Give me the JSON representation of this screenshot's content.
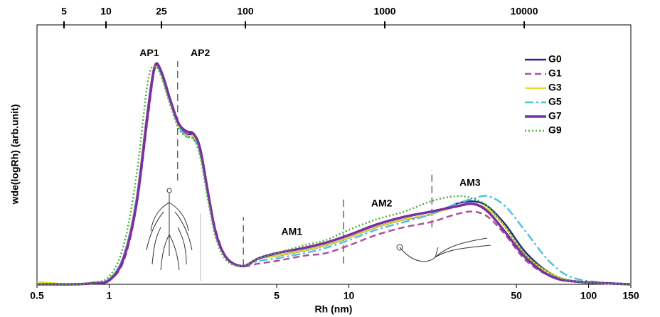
{
  "chart_data": {
    "type": "line",
    "xlabel": "Rh (nm)",
    "ylabel": "wde(logRh) (arb.unit)",
    "xscale": "log",
    "xlim": [
      0.5,
      150
    ],
    "xticks": [
      0.5,
      1,
      5,
      10,
      50,
      100,
      150
    ],
    "x2lim": [
      3.2,
      58200
    ],
    "x2ticks": [
      5,
      10,
      25,
      100,
      1000,
      10000
    ],
    "ylim": [
      0,
      1
    ],
    "legend": "upper right",
    "x": [
      0.5,
      0.7,
      0.85,
      1.0,
      1.15,
      1.3,
      1.45,
      1.55,
      1.65,
      1.8,
      1.95,
      2.1,
      2.25,
      2.4,
      2.6,
      2.8,
      3.1,
      3.6,
      4.2,
      5,
      6.5,
      8,
      10,
      13,
      17,
      22,
      28,
      33,
      38,
      45,
      55,
      70,
      90,
      150
    ],
    "series": [
      {
        "name": "G0",
        "color": "#2e2a8c",
        "dash": "solid",
        "width": 2.5,
        "values": [
          0,
          0,
          0.005,
          0.02,
          0.11,
          0.33,
          0.68,
          0.84,
          0.81,
          0.7,
          0.62,
          0.58,
          0.575,
          0.51,
          0.33,
          0.19,
          0.1,
          0.07,
          0.1,
          0.11,
          0.13,
          0.15,
          0.18,
          0.22,
          0.25,
          0.27,
          0.31,
          0.32,
          0.3,
          0.23,
          0.12,
          0.04,
          0.01,
          0
        ]
      },
      {
        "name": "G1",
        "color": "#b04fa0",
        "dash": "dashed",
        "width": 2.5,
        "values": [
          0,
          0,
          0.004,
          0.015,
          0.09,
          0.3,
          0.64,
          0.83,
          0.82,
          0.71,
          0.62,
          0.58,
          0.57,
          0.51,
          0.34,
          0.2,
          0.1,
          0.07,
          0.08,
          0.09,
          0.11,
          0.12,
          0.15,
          0.19,
          0.22,
          0.24,
          0.27,
          0.28,
          0.26,
          0.19,
          0.09,
          0.03,
          0.01,
          0
        ]
      },
      {
        "name": "G3",
        "color": "#e8e020",
        "dash": "solid",
        "width": 2,
        "values": [
          0.01,
          0,
          0.005,
          0.02,
          0.11,
          0.33,
          0.68,
          0.83,
          0.81,
          0.7,
          0.61,
          0.57,
          0.57,
          0.51,
          0.33,
          0.19,
          0.1,
          0.07,
          0.1,
          0.11,
          0.13,
          0.15,
          0.18,
          0.22,
          0.25,
          0.27,
          0.3,
          0.31,
          0.29,
          0.22,
          0.11,
          0.04,
          0.01,
          0
        ]
      },
      {
        "name": "G5",
        "color": "#4fc3dc",
        "dash": "dashdot",
        "width": 2.5,
        "values": [
          0,
          0,
          0.005,
          0.02,
          0.11,
          0.33,
          0.67,
          0.83,
          0.81,
          0.7,
          0.61,
          0.57,
          0.56,
          0.5,
          0.33,
          0.19,
          0.1,
          0.07,
          0.09,
          0.1,
          0.12,
          0.14,
          0.17,
          0.21,
          0.24,
          0.27,
          0.31,
          0.33,
          0.34,
          0.3,
          0.2,
          0.08,
          0.02,
          0
        ]
      },
      {
        "name": "G7",
        "color": "#7b2fa0",
        "dash": "solid",
        "width": 3.5,
        "values": [
          0,
          0,
          0.004,
          0.015,
          0.1,
          0.31,
          0.66,
          0.84,
          0.82,
          0.71,
          0.62,
          0.59,
          0.58,
          0.52,
          0.34,
          0.19,
          0.1,
          0.07,
          0.1,
          0.12,
          0.14,
          0.16,
          0.19,
          0.23,
          0.26,
          0.28,
          0.3,
          0.31,
          0.28,
          0.2,
          0.1,
          0.03,
          0.01,
          0
        ]
      },
      {
        "name": "G9",
        "color": "#4caf3a",
        "dash": "dotted",
        "width": 2.5,
        "values": [
          0,
          0,
          0.008,
          0.03,
          0.15,
          0.42,
          0.78,
          0.84,
          0.8,
          0.69,
          0.6,
          0.57,
          0.56,
          0.49,
          0.31,
          0.17,
          0.09,
          0.07,
          0.1,
          0.12,
          0.15,
          0.17,
          0.21,
          0.25,
          0.28,
          0.32,
          0.34,
          0.33,
          0.3,
          0.22,
          0.11,
          0.04,
          0.01,
          0
        ]
      }
    ],
    "annotations": [
      {
        "text": "AP1",
        "x": 1.47,
        "y": 0.89
      },
      {
        "text": "AP2",
        "x": 2.4,
        "y": 0.89
      },
      {
        "text": "AM1",
        "x": 5.78,
        "y": 0.2
      },
      {
        "text": "AM2",
        "x": 13.7,
        "y": 0.31
      },
      {
        "text": "AM3",
        "x": 32,
        "y": 0.39
      }
    ],
    "dividers": [
      {
        "x": 1.93,
        "y": [
          0.4,
          0.86
        ]
      },
      {
        "x": 3.63,
        "y": [
          0.07,
          0.26
        ]
      },
      {
        "x": 9.5,
        "y": [
          0.08,
          0.34
        ]
      },
      {
        "x": 22.2,
        "y": [
          0.22,
          0.44
        ]
      }
    ]
  }
}
